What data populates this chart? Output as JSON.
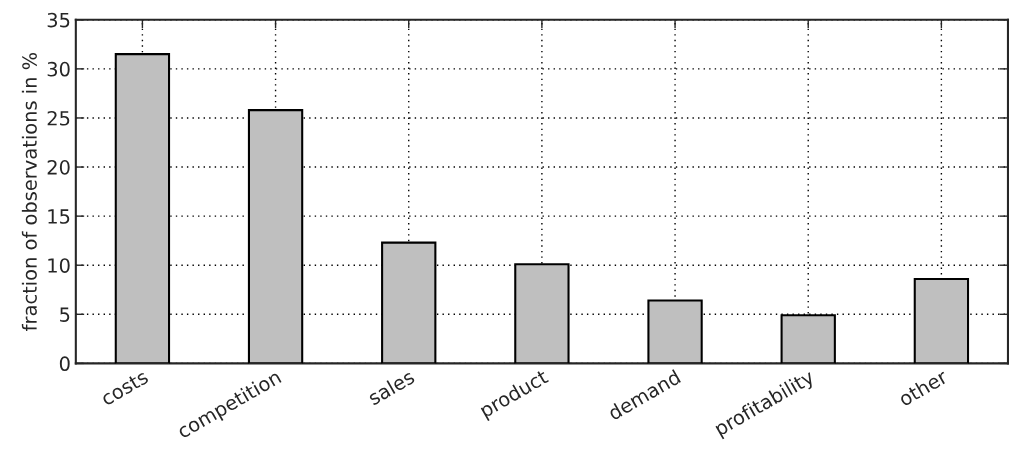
{
  "chart_data": {
    "type": "bar",
    "ylabel": "fraction of observations in %",
    "categories": [
      "costs",
      "competition",
      "sales",
      "product",
      "demand",
      "profitability",
      "other"
    ],
    "values": [
      31.5,
      25.8,
      12.3,
      10.1,
      6.4,
      4.9,
      8.6
    ],
    "color": "#bfbfbf",
    "ylim": [
      0,
      35
    ],
    "yticks": [
      0,
      5,
      10,
      15,
      20,
      25,
      30,
      35
    ],
    "grid": true
  }
}
